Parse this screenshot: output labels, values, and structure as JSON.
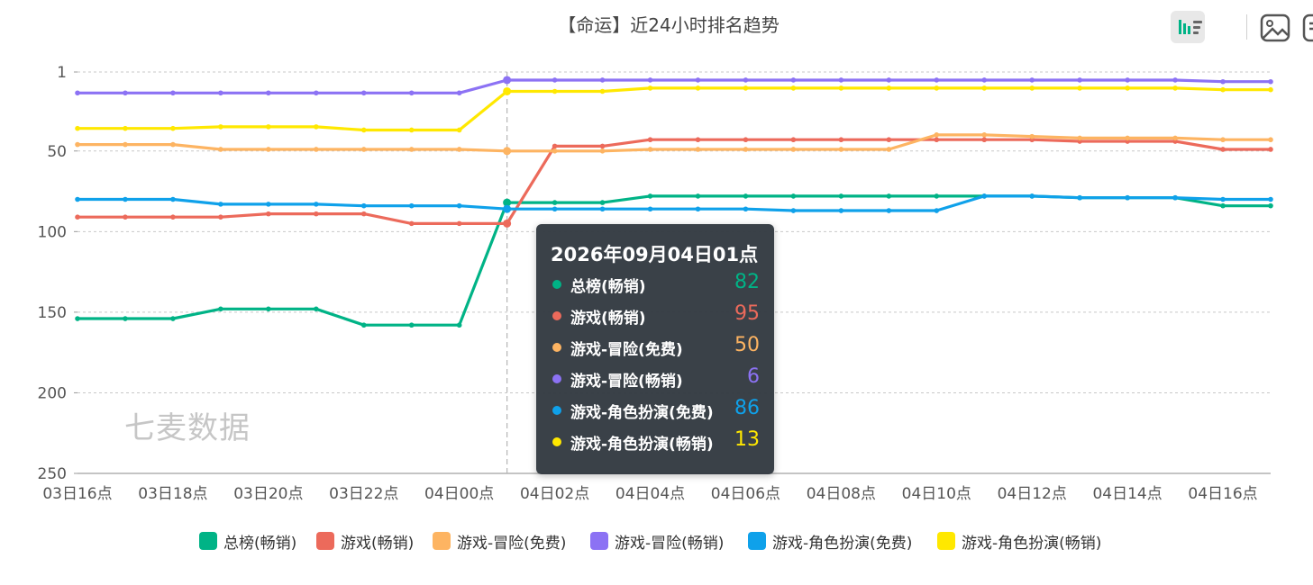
{
  "chart_data": {
    "type": "line",
    "title": "【命运】近24小时排名趋势",
    "xlabel": "",
    "ylabel": "",
    "y_inverted": true,
    "ylim": [
      1,
      250
    ],
    "y_ticks": [
      1,
      50,
      100,
      150,
      200,
      250
    ],
    "grid": "horizontal dashed",
    "legend_position": "bottom",
    "x": [
      "03日16点",
      "03日17点",
      "03日18点",
      "03日19点",
      "03日20点",
      "03日21点",
      "03日22点",
      "03日23点",
      "04日00点",
      "04日01点",
      "04日02点",
      "04日03点",
      "04日04点",
      "04日05点",
      "04日06点",
      "04日07点",
      "04日08点",
      "04日09点",
      "04日10点",
      "04日11点",
      "04日12点",
      "04日13点",
      "04日14点",
      "04日15点",
      "04日16点",
      "04日17点"
    ],
    "x_tick_labels": [
      "03日16点",
      "03日18点",
      "03日20点",
      "03日22点",
      "04日00点",
      "04日02点",
      "04日04点",
      "04日06点",
      "04日08点",
      "04日10点",
      "04日12点",
      "04日14点",
      "04日16点"
    ],
    "series": [
      {
        "name": "总榜(畅销)",
        "color": "#00b386",
        "values": [
          154,
          154,
          154,
          148,
          148,
          148,
          158,
          158,
          158,
          82,
          82,
          82,
          78,
          78,
          78,
          78,
          78,
          78,
          78,
          78,
          78,
          79,
          79,
          79,
          84,
          84
        ]
      },
      {
        "name": "游戏(畅销)",
        "color": "#ec6a5b",
        "values": [
          91,
          91,
          91,
          91,
          89,
          89,
          89,
          95,
          95,
          95,
          47,
          47,
          43,
          43,
          43,
          43,
          43,
          43,
          43,
          43,
          43,
          44,
          44,
          44,
          49,
          49
        ]
      },
      {
        "name": "游戏-冒险(免费)",
        "color": "#fdb462",
        "values": [
          46,
          46,
          46,
          49,
          49,
          49,
          49,
          49,
          49,
          50,
          50,
          50,
          49,
          49,
          49,
          49,
          49,
          49,
          40,
          40,
          41,
          42,
          42,
          42,
          43,
          43
        ]
      },
      {
        "name": "游戏-冒险(畅销)",
        "color": "#8c72f4",
        "values": [
          14,
          14,
          14,
          14,
          14,
          14,
          14,
          14,
          14,
          6,
          6,
          6,
          6,
          6,
          6,
          6,
          6,
          6,
          6,
          6,
          6,
          6,
          6,
          6,
          7,
          7
        ]
      },
      {
        "name": "游戏-角色扮演(免费)",
        "color": "#0fa1ea",
        "values": [
          80,
          80,
          80,
          83,
          83,
          83,
          84,
          84,
          84,
          86,
          86,
          86,
          86,
          86,
          86,
          87,
          87,
          87,
          87,
          78,
          78,
          79,
          79,
          79,
          80,
          80
        ]
      },
      {
        "name": "游戏-角色扮演(畅销)",
        "color": "#ffe800",
        "values": [
          36,
          36,
          36,
          35,
          35,
          35,
          37,
          37,
          37,
          13,
          13,
          13,
          11,
          11,
          11,
          11,
          11,
          11,
          11,
          11,
          11,
          11,
          11,
          11,
          12,
          12
        ]
      }
    ],
    "hover_index": 9
  },
  "tooltip": {
    "title": "2026年09月04日01点",
    "rows": [
      {
        "name": "总榜(畅销)",
        "value": "82",
        "color": "#00b386"
      },
      {
        "name": "游戏(畅销)",
        "value": "95",
        "color": "#ec6a5b"
      },
      {
        "name": "游戏-冒险(免费)",
        "value": "50",
        "color": "#fdb462"
      },
      {
        "name": "游戏-冒险(畅销)",
        "value": "6",
        "color": "#8c72f4"
      },
      {
        "name": "游戏-角色扮演(免费)",
        "value": "86",
        "color": "#0fa1ea"
      },
      {
        "name": "游戏-角色扮演(畅销)",
        "value": "13",
        "color": "#ffe800"
      }
    ]
  },
  "watermark": "七麦数据",
  "toolbar": {
    "buttons": [
      {
        "icon": "bar-line-toggle-icon",
        "active": true
      },
      {
        "icon": "save-image-icon",
        "active": false
      },
      {
        "icon": "data-view-icon",
        "active": false
      }
    ]
  }
}
